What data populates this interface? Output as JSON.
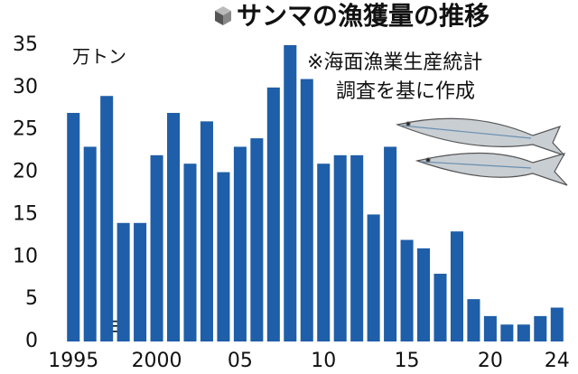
{
  "chart_data": {
    "type": "bar",
    "title": "サンマの漁獲量の推移",
    "unit": "万トン",
    "x_label": "年",
    "note": [
      "※海面漁業生産統計",
      "調査を基に作成"
    ],
    "categories": [
      "1995",
      null,
      null,
      null,
      null,
      "2000",
      null,
      null,
      null,
      null,
      "05",
      null,
      null,
      null,
      null,
      "10",
      null,
      null,
      null,
      null,
      "15",
      null,
      null,
      null,
      null,
      "20",
      null,
      null,
      null,
      "24"
    ],
    "values": [
      27,
      23,
      29,
      14,
      14,
      22,
      27,
      21,
      26,
      20,
      23,
      24,
      30,
      35,
      31,
      21,
      22,
      22,
      15,
      23,
      12,
      11,
      8,
      13,
      5,
      3,
      2,
      2,
      3,
      4
    ],
    "color": "#1f5ea8",
    "ylim": [
      0,
      35
    ],
    "yticks": [
      0,
      5,
      10,
      15,
      20,
      25,
      30,
      35
    ],
    "grid": false
  }
}
